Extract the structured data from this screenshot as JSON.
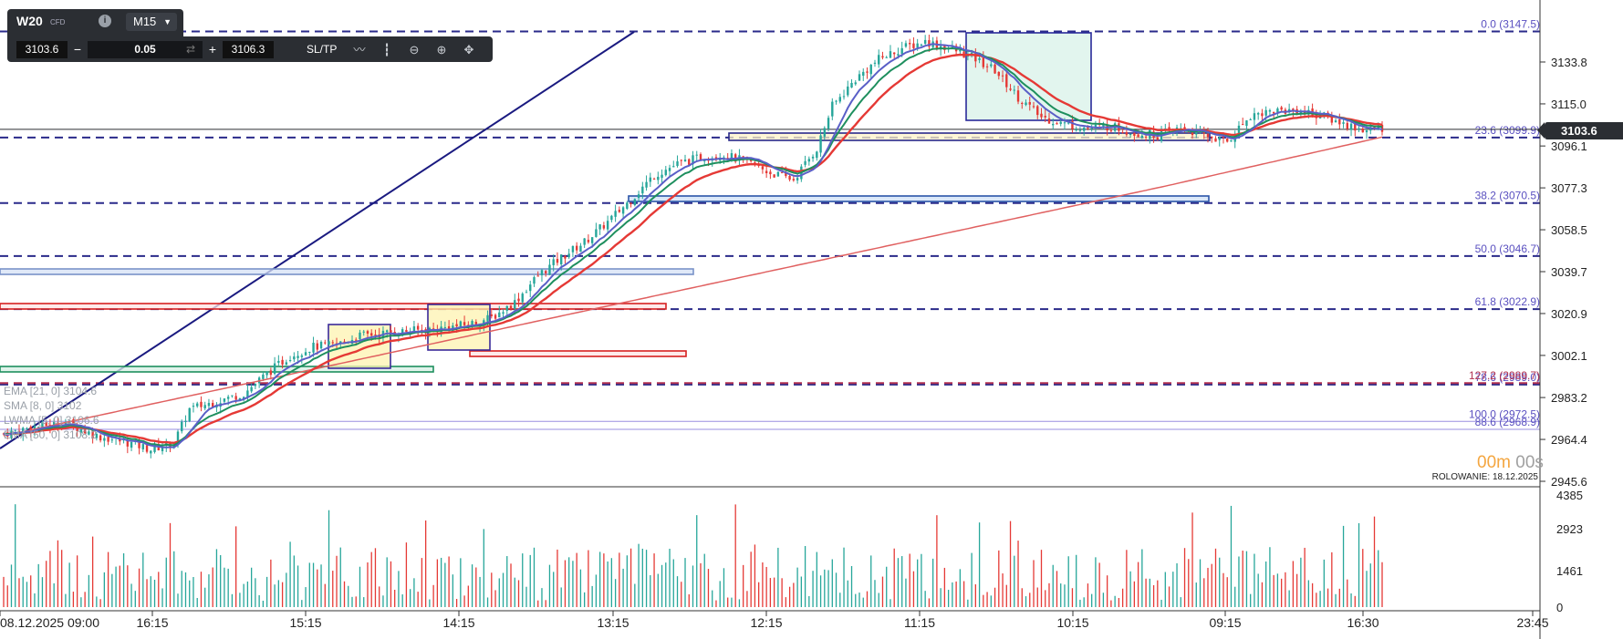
{
  "toolbar": {
    "symbol": "W20",
    "symbol_tag": "CFD",
    "timeframe": "M15",
    "bid": "3103.6",
    "minus_label": "−",
    "volume": "0.05",
    "plus_label": "+",
    "ask": "3106.3",
    "sltp_label": "SL/TP",
    "icons": [
      "line-chart-icon",
      "candlestick-icon",
      "zoom-out-icon",
      "zoom-in-icon",
      "crosshair-move-icon"
    ]
  },
  "colors": {
    "up": "#26a69a",
    "down": "#e53935",
    "ma_fast": "#5a5fc7",
    "ema_green": "#1e8f5e",
    "ema_red": "#e53935",
    "ema_long": "#e06060",
    "fib": "#2a2a8a",
    "toolbar_bg": "#2b2e33"
  },
  "current_price": "3103.6",
  "timer": {
    "minutes": "00m",
    "seconds": "00s"
  },
  "rollover": "ROLOWANIE: 18.12.2025",
  "indicator_legend": [
    "EMA [21, 0] 3104.6",
    "SMA [8, 0] 3102",
    "LWMA [5, 0] 3106.6",
    "EMA [50, 0] 3108.2"
  ],
  "chart_data": {
    "type": "candlestick",
    "symbol": "W20",
    "timeframe": "M15",
    "y_axis_ticks": [
      "3133.8",
      "3115.0",
      "3096.1",
      "3077.3",
      "3058.5",
      "3039.7",
      "3020.9",
      "3002.1",
      "2983.2",
      "2964.4",
      "2945.6"
    ],
    "volume_axis_ticks": [
      "4385",
      "2923",
      "1461",
      "0"
    ],
    "x_axis_ticks": [
      "08.12.2025 09:00",
      "16:15",
      "15:15",
      "14:15",
      "13:15",
      "12:15",
      "11:15",
      "10:15",
      "09:15",
      "16:30",
      "23:45"
    ],
    "ylim": [
      2945.6,
      3149
    ],
    "fibonacci_levels": [
      {
        "label": "0.0 (3147.5)",
        "price": 3147.5
      },
      {
        "label": "23.6 (3099.9)",
        "price": 3099.9
      },
      {
        "label": "38.2 (3070.5)",
        "price": 3070.5
      },
      {
        "label": "50.0 (3046.7)",
        "price": 3046.7
      },
      {
        "label": "61.8 (3022.9)",
        "price": 3022.9
      },
      {
        "label": "78.6 (2989.0)",
        "price": 2989.0
      },
      {
        "label": "127.2 (2989.7)",
        "price": 2989.7
      },
      {
        "label": "100.0 (2972.5)",
        "price": 2972.5
      },
      {
        "label": "88.6 (2968.9)",
        "price": 2968.9
      }
    ],
    "close_anchors": [
      [
        0,
        2967
      ],
      [
        8,
        2970
      ],
      [
        16,
        2972
      ],
      [
        24,
        2966
      ],
      [
        32,
        2963
      ],
      [
        38,
        2960
      ],
      [
        44,
        2963
      ],
      [
        48,
        2978
      ],
      [
        56,
        2982
      ],
      [
        62,
        2985
      ],
      [
        68,
        2994
      ],
      [
        74,
        3002
      ],
      [
        80,
        3006
      ],
      [
        86,
        3007
      ],
      [
        92,
        3011
      ],
      [
        98,
        3012
      ],
      [
        104,
        3013
      ],
      [
        112,
        3014
      ],
      [
        120,
        3016
      ],
      [
        126,
        3019
      ],
      [
        132,
        3026
      ],
      [
        138,
        3038
      ],
      [
        144,
        3046
      ],
      [
        150,
        3053
      ],
      [
        156,
        3062
      ],
      [
        162,
        3072
      ],
      [
        168,
        3083
      ],
      [
        174,
        3088
      ],
      [
        180,
        3091
      ],
      [
        186,
        3092
      ],
      [
        192,
        3089
      ],
      [
        198,
        3084
      ],
      [
        204,
        3081
      ],
      [
        210,
        3095
      ],
      [
        214,
        3114
      ],
      [
        220,
        3126
      ],
      [
        226,
        3135
      ],
      [
        232,
        3140
      ],
      [
        238,
        3143
      ],
      [
        244,
        3140
      ],
      [
        250,
        3136
      ],
      [
        256,
        3130
      ],
      [
        262,
        3118
      ],
      [
        268,
        3109
      ],
      [
        274,
        3106
      ],
      [
        280,
        3104
      ],
      [
        286,
        3105
      ],
      [
        292,
        3102
      ],
      [
        298,
        3101
      ],
      [
        304,
        3104
      ],
      [
        310,
        3101
      ],
      [
        316,
        3098
      ],
      [
        322,
        3110
      ],
      [
        328,
        3112
      ],
      [
        334,
        3112
      ],
      [
        340,
        3110
      ],
      [
        346,
        3106
      ],
      [
        352,
        3103
      ],
      [
        356,
        3104
      ]
    ]
  }
}
